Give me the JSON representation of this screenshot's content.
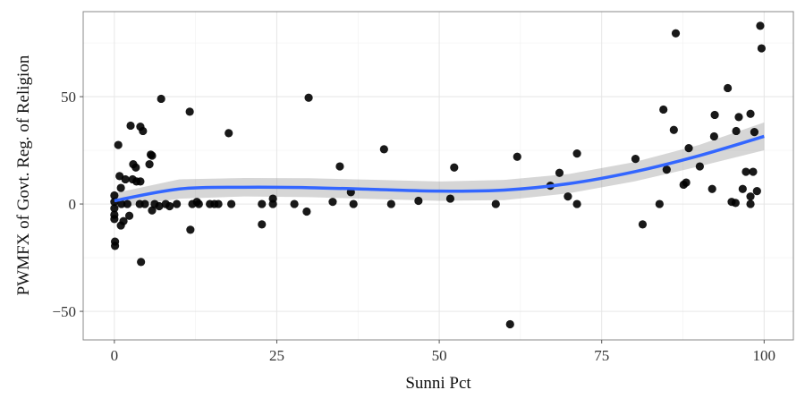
{
  "chart_data": {
    "type": "scatter",
    "x_label": "Sunni Pct",
    "y_label": "PWMFX of Govt. Reg. of Religion",
    "xlim": [
      -4.8,
      104.5
    ],
    "ylim": [
      -63.3,
      89.6
    ],
    "xticks": [
      0,
      25,
      50,
      75,
      100
    ],
    "yticks": [
      {
        "value": -50,
        "label": "−50"
      },
      0,
      50
    ],
    "grid": true,
    "point_color": "#000000",
    "points": {
      "x": [
        0,
        0,
        0,
        0,
        0,
        0.1,
        0.1,
        0.6,
        0.8,
        1,
        1,
        1.4,
        1.1,
        1.7,
        2,
        2.3,
        2.5,
        2.8,
        2.9,
        3.3,
        3.4,
        4,
        3.9,
        4,
        4.1,
        4.4,
        4.7,
        5.4,
        5.6,
        5.8,
        5.8,
        6.2,
        7.2,
        6.9,
        7.9,
        8.5,
        9.6,
        11.6,
        11.7,
        12,
        12.7,
        13,
        14.7,
        15.4,
        16,
        17.6,
        18,
        22.7,
        22.7,
        24.4,
        24.4,
        27.7,
        29.6,
        29.9,
        33.6,
        34.7,
        36.4,
        36.8,
        41.5,
        42.6,
        46.8,
        51.7,
        52.3,
        58.7,
        60.9,
        62,
        67.1,
        68.5,
        69.8,
        71.2,
        71.2,
        80.2,
        81.3,
        83.9,
        84.5,
        85,
        86.4,
        86.1,
        87.6,
        88,
        88.4,
        90.1,
        92,
        92.3,
        92.4,
        94.4,
        95,
        95.6,
        96.1,
        95.7,
        96.7,
        97.2,
        97.9,
        97.9,
        97.9,
        98.3,
        98.5,
        98.9,
        99.4,
        99.6
      ],
      "y": [
        4,
        1,
        -2,
        -5,
        -7,
        -17.5,
        -19.5,
        27.5,
        13,
        7.5,
        -10,
        -8,
        0,
        11.5,
        0,
        -5.5,
        36.5,
        11.5,
        18.5,
        17,
        10.5,
        36,
        0,
        10.5,
        -27,
        34,
        0,
        18.5,
        23,
        22.5,
        -3,
        0,
        49,
        -1,
        0,
        -1,
        0,
        43,
        -12,
        0,
        1,
        0,
        0,
        0,
        0,
        33,
        0,
        -9.5,
        0,
        2.5,
        0,
        0,
        -3.5,
        49.5,
        1,
        17.5,
        5.5,
        0,
        25.5,
        0,
        1.5,
        2.5,
        17,
        0,
        -56,
        22,
        8.5,
        14.5,
        3.5,
        23.5,
        0,
        21,
        -9.5,
        0,
        44,
        16,
        79.5,
        34.5,
        9,
        10,
        26,
        17.5,
        7,
        31.5,
        41.5,
        54,
        1,
        0.5,
        40.5,
        34,
        7,
        15,
        42,
        3.5,
        0,
        15,
        33.5,
        6,
        83,
        72.5
      ]
    },
    "smooth": {
      "color": "#3366ff",
      "band_color": "#999999",
      "x": [
        0,
        10,
        20,
        30,
        40,
        50,
        60,
        70,
        80,
        90,
        100
      ],
      "y": [
        1.5,
        7,
        7.8,
        7.6,
        6.8,
        6,
        6.5,
        9.5,
        15,
        22.5,
        31.5
      ],
      "lower": [
        -2,
        2.5,
        3.5,
        3.2,
        2.3,
        1.5,
        1.8,
        5,
        10.5,
        17.5,
        25
      ],
      "upper": [
        5,
        11.5,
        12.1,
        12,
        11.3,
        10.5,
        11.2,
        14,
        19.5,
        27.5,
        38
      ]
    }
  }
}
